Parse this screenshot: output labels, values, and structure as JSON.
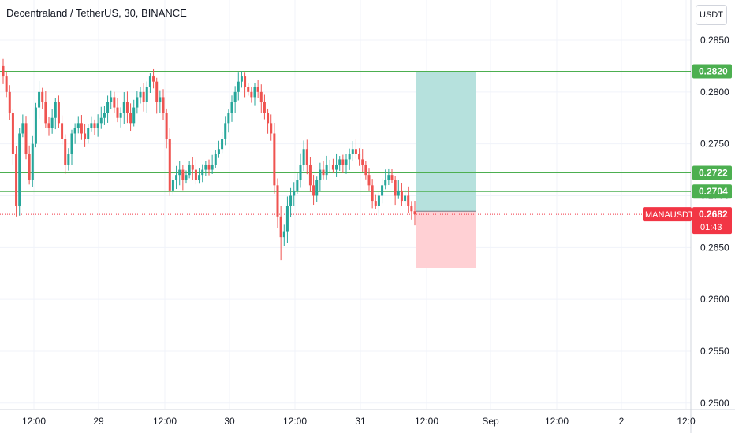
{
  "header": {
    "title": "Decentraland / TetherUS, 30, BINANCE",
    "currency_button": "USDT"
  },
  "colors": {
    "up": "#26a69a",
    "down": "#ef5350",
    "level_line": "#4caf50",
    "target_zone": "#b2dfdb",
    "stop_zone": "#ffcdd2",
    "grid": "#f0f3fa",
    "axis_text": "#131722",
    "price_label": "#f23645"
  },
  "chart_data": {
    "type": "candlestick",
    "symbol": "MANAUSDT",
    "interval": "30",
    "exchange": "BINANCE",
    "ylim": [
      0.2495,
      0.2875
    ],
    "y_ticks": [
      "0.2850",
      "0.2800",
      "0.2750",
      "0.2700",
      "0.2650",
      "0.2600",
      "0.2550",
      "0.2500"
    ],
    "x_ticks": [
      "12:00",
      "29",
      "12:00",
      "30",
      "12:00",
      "31",
      "12:00",
      "Sep",
      "12:00",
      "2",
      "12:0"
    ],
    "horizontal_levels": [
      {
        "label": "0.2820",
        "value": 0.282
      },
      {
        "label": "0.2722",
        "value": 0.2722
      },
      {
        "label": "0.2704",
        "value": 0.2704
      }
    ],
    "position": {
      "entry": 0.2685,
      "target": 0.282,
      "stop": 0.263
    },
    "last_price": {
      "symbol": "MANAUSDT",
      "value": "0.2682",
      "countdown": "01:43"
    },
    "closes": [
      0.2815,
      0.28,
      0.278,
      0.274,
      0.269,
      0.276,
      0.277,
      0.274,
      0.2715,
      0.275,
      0.2785,
      0.28,
      0.279,
      0.277,
      0.2765,
      0.2775,
      0.279,
      0.277,
      0.2755,
      0.273,
      0.274,
      0.276,
      0.2765,
      0.277,
      0.276,
      0.2755,
      0.2765,
      0.277,
      0.2765,
      0.277,
      0.2775,
      0.278,
      0.279,
      0.2795,
      0.2785,
      0.2775,
      0.278,
      0.279,
      0.278,
      0.277,
      0.2785,
      0.2795,
      0.28,
      0.279,
      0.2805,
      0.2815,
      0.281,
      0.279,
      0.2795,
      0.278,
      0.2755,
      0.2705,
      0.2715,
      0.272,
      0.2725,
      0.2715,
      0.272,
      0.273,
      0.2725,
      0.2715,
      0.272,
      0.2725,
      0.273,
      0.2725,
      0.273,
      0.274,
      0.2745,
      0.2755,
      0.277,
      0.278,
      0.279,
      0.28,
      0.281,
      0.2815,
      0.2805,
      0.28,
      0.2795,
      0.2805,
      0.28,
      0.279,
      0.278,
      0.277,
      0.276,
      0.271,
      0.268,
      0.266,
      0.2665,
      0.269,
      0.27,
      0.2705,
      0.2715,
      0.273,
      0.2745,
      0.273,
      0.271,
      0.27,
      0.2715,
      0.2725,
      0.272,
      0.273,
      0.273,
      0.2725,
      0.273,
      0.2735,
      0.273,
      0.2735,
      0.274,
      0.2745,
      0.274,
      0.2735,
      0.273,
      0.272,
      0.271,
      0.2695,
      0.269,
      0.27,
      0.271,
      0.2715,
      0.272,
      0.2715,
      0.27,
      0.2705,
      0.2695,
      0.27,
      0.269,
      0.2685,
      0.2682
    ]
  }
}
